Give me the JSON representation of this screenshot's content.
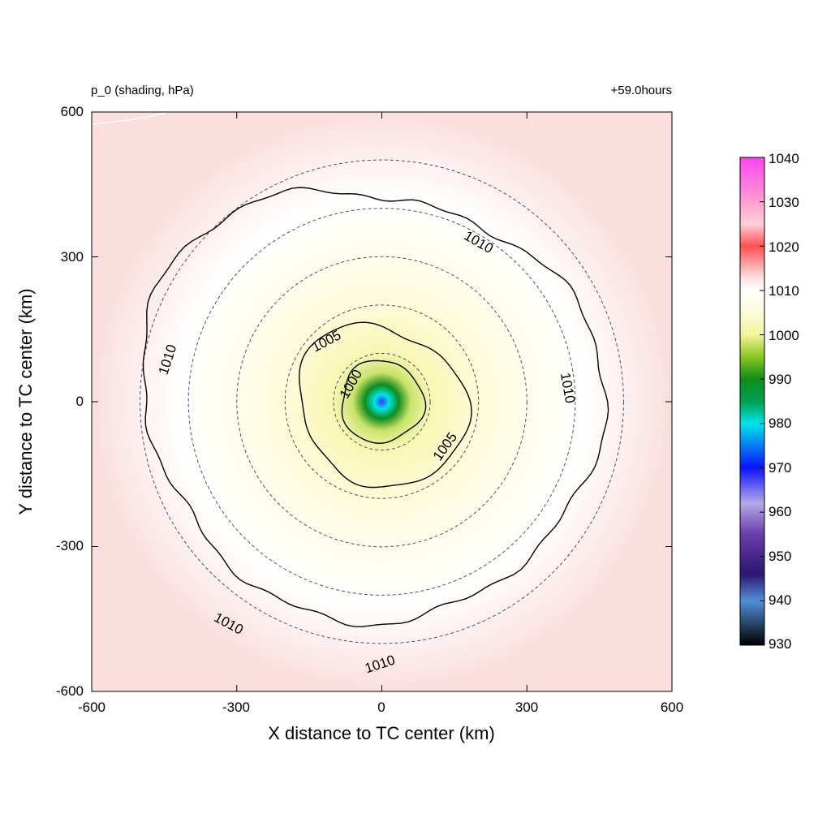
{
  "title_left": "p_0 (shading, hPa)",
  "title_right": "+59.0hours",
  "chart_data": {
    "type": "heatmap",
    "field": "p_0",
    "xlabel": "X distance to TC center (km)",
    "ylabel": "Y distance to TC center (km)",
    "xlim": [
      -600,
      600
    ],
    "ylim": [
      -600,
      600
    ],
    "x_ticks": [
      "-600",
      "-300",
      "0",
      "300",
      "600"
    ],
    "y_ticks": [
      "600",
      "300",
      "0",
      "-300",
      "-600"
    ],
    "center": [
      0,
      0
    ],
    "min_pressure_center_hpa": 968,
    "radial_profile_hpa": [
      {
        "r": 0,
        "p": 968
      },
      {
        "r": 15,
        "p": 980
      },
      {
        "r": 35,
        "p": 990
      },
      {
        "r": 60,
        "p": 998
      },
      {
        "r": 100,
        "p": 1002
      },
      {
        "r": 200,
        "p": 1005
      },
      {
        "r": 300,
        "p": 1007.5
      },
      {
        "r": 420,
        "p": 1010
      },
      {
        "r": 600,
        "p": 1013
      }
    ],
    "contours": [
      {
        "level": 1000,
        "label": "1000",
        "approx_radius_km": 85
      },
      {
        "level": 1005,
        "label": "1005",
        "approx_radius_km": 170
      },
      {
        "level": 1010,
        "label": "1010",
        "approx_radius_km": 460
      }
    ],
    "contour_labels": [
      "1000",
      "1005",
      "1005",
      "1010",
      "1010",
      "1010",
      "1010",
      "1010"
    ],
    "dashed_rings_km": [
      100,
      200,
      300,
      400,
      500
    ],
    "colorbar": {
      "ticks": [
        "1040",
        "1030",
        "1020",
        "1010",
        "1000",
        "990",
        "980",
        "970",
        "960",
        "950",
        "940",
        "930"
      ],
      "range": [
        930,
        1040
      ],
      "stops": [
        {
          "v": 930,
          "c": "#000000"
        },
        {
          "v": 940,
          "c": "#4f8ed8"
        },
        {
          "v": 946,
          "c": "#2c1670"
        },
        {
          "v": 955,
          "c": "#6a3da8"
        },
        {
          "v": 962,
          "c": "#b4a8e6"
        },
        {
          "v": 970,
          "c": "#0a14ff"
        },
        {
          "v": 980,
          "c": "#00e5e8"
        },
        {
          "v": 985,
          "c": "#00a050"
        },
        {
          "v": 990,
          "c": "#108c1c"
        },
        {
          "v": 995,
          "c": "#88c820"
        },
        {
          "v": 1000,
          "c": "#f4f49a"
        },
        {
          "v": 1005,
          "c": "#fdfbd8"
        },
        {
          "v": 1010,
          "c": "#ffffff"
        },
        {
          "v": 1013,
          "c": "#fbdede"
        },
        {
          "v": 1020,
          "c": "#ff5050"
        },
        {
          "v": 1025,
          "c": "#ffd0d8"
        },
        {
          "v": 1030,
          "c": "#ff9ed0"
        },
        {
          "v": 1040,
          "c": "#ff44ee"
        }
      ]
    }
  }
}
